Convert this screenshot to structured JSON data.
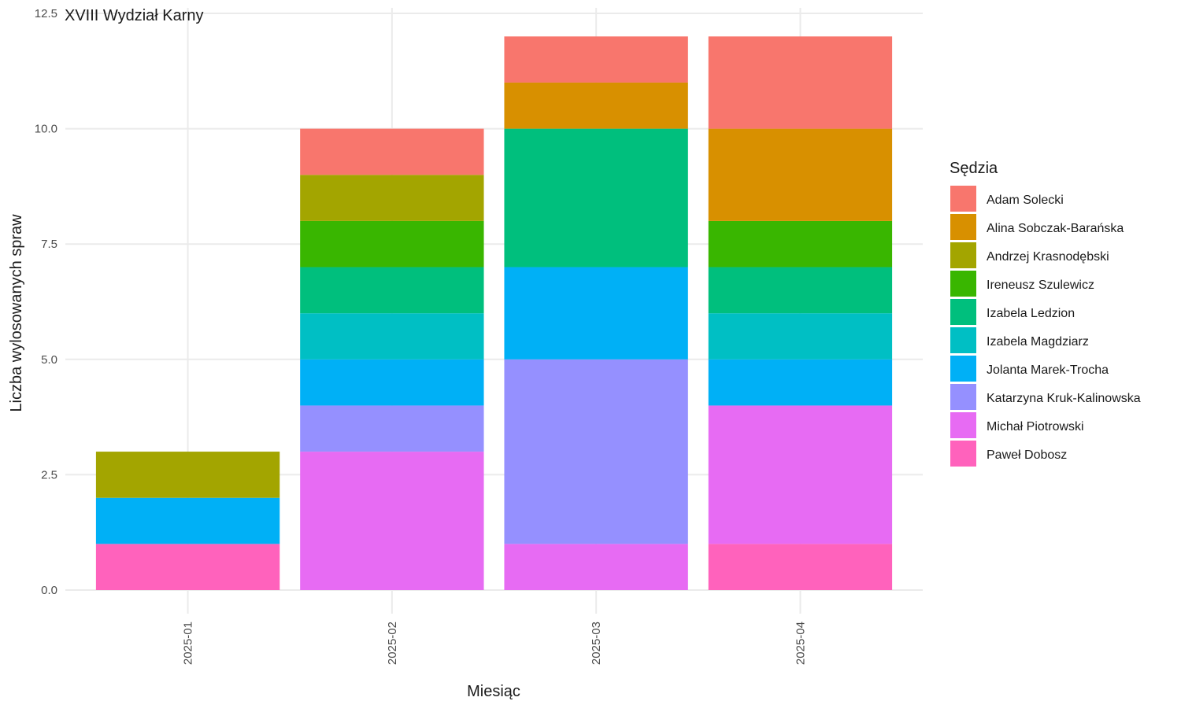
{
  "chart_data": {
    "type": "bar",
    "stacked": true,
    "title": "XVIII Wydział Karny",
    "xlabel": "Miesiąc",
    "ylabel": "Liczba wylosowanych spraw",
    "ylim": [
      0,
      12.5
    ],
    "y_ticks": [
      "0.0",
      "2.5",
      "5.0",
      "7.5",
      "10.0",
      "12.5"
    ],
    "y_tick_values": [
      0,
      2.5,
      5,
      7.5,
      10,
      12.5
    ],
    "grid": true,
    "categories": [
      "2025-01",
      "2025-02",
      "2025-03",
      "2025-04"
    ],
    "legend": {
      "title": "Sędzia",
      "position": "right"
    },
    "series": [
      {
        "name": "Adam Solecki",
        "color": "#F8766D",
        "values": [
          0,
          1,
          1,
          2
        ]
      },
      {
        "name": "Alina Sobczak-Barańska",
        "color": "#D89000",
        "values": [
          0,
          0,
          1,
          2
        ]
      },
      {
        "name": "Andrzej Krasnodębski",
        "color": "#A3A500",
        "values": [
          1,
          1,
          0,
          0
        ]
      },
      {
        "name": "Ireneusz Szulewicz",
        "color": "#39B600",
        "values": [
          0,
          1,
          0,
          1
        ]
      },
      {
        "name": "Izabela Ledzion",
        "color": "#00BF7D",
        "values": [
          0,
          1,
          3,
          1
        ]
      },
      {
        "name": "Izabela Magdziarz",
        "color": "#00BFC4",
        "values": [
          0,
          1,
          0,
          1
        ]
      },
      {
        "name": "Jolanta Marek-Trocha",
        "color": "#00B0F6",
        "values": [
          1,
          1,
          2,
          1
        ]
      },
      {
        "name": "Katarzyna Kruk-Kalinowska",
        "color": "#9590FF",
        "values": [
          0,
          1,
          4,
          0
        ]
      },
      {
        "name": "Michał Piotrowski",
        "color": "#E76BF3",
        "values": [
          0,
          3,
          1,
          3
        ]
      },
      {
        "name": "Paweł Dobosz",
        "color": "#FF62BC",
        "values": [
          1,
          0,
          0,
          1
        ]
      }
    ]
  }
}
